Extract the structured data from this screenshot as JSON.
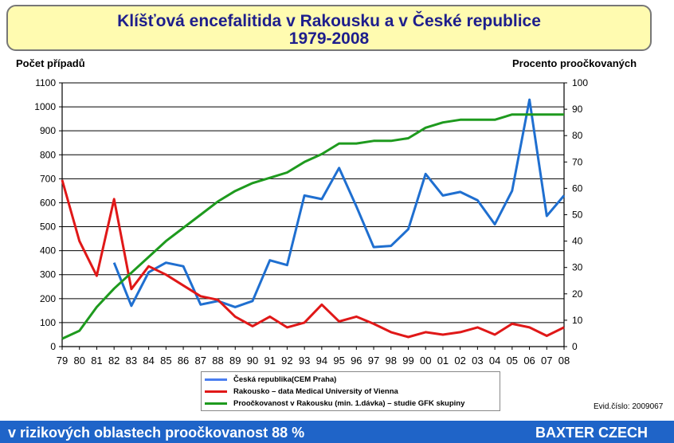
{
  "title_line1": "Klíšťová encefalitida v Rakousku a v České republice",
  "title_line2": "1979-2008",
  "footer_left": "v rizikových oblastech proočkovanost 88 %",
  "footer_right": "BAXTER CZECH",
  "evid": "Evid.číslo: 2009067",
  "chart_data": {
    "type": "line",
    "categories": [
      "79",
      "80",
      "81",
      "82",
      "83",
      "84",
      "85",
      "86",
      "87",
      "88",
      "89",
      "90",
      "91",
      "92",
      "93",
      "94",
      "95",
      "96",
      "97",
      "98",
      "99",
      "00",
      "01",
      "02",
      "03",
      "04",
      "05",
      "06",
      "07",
      "08"
    ],
    "ylabel_left": "Počet případů",
    "ylabel_right": "Procento proočkovaných",
    "ylim_left": [
      0,
      1100
    ],
    "yticks_left": [
      0,
      100,
      200,
      300,
      400,
      500,
      600,
      700,
      800,
      900,
      1000,
      1100
    ],
    "ylim_right": [
      0,
      100
    ],
    "yticks_right": [
      0,
      10,
      20,
      30,
      40,
      50,
      60,
      70,
      80,
      90,
      100
    ],
    "grid": true,
    "legend_position": "bottom",
    "series": [
      {
        "name": "Česká republika(CEM Praha)",
        "axis": "left",
        "color": "#1f6fd0",
        "values": [
          null,
          null,
          null,
          350,
          170,
          310,
          350,
          335,
          175,
          190,
          165,
          190,
          360,
          340,
          630,
          615,
          745,
          585,
          415,
          420,
          490,
          720,
          630,
          645,
          610,
          510,
          650,
          1030,
          545,
          630
        ]
      },
      {
        "name": "Rakousko – data Medical University of Vienna",
        "axis": "left",
        "color": "#e01818",
        "values": [
          695,
          440,
          295,
          615,
          240,
          335,
          300,
          255,
          210,
          195,
          125,
          85,
          125,
          80,
          100,
          175,
          105,
          125,
          95,
          60,
          40,
          60,
          50,
          60,
          80,
          50,
          95,
          80,
          45,
          80
        ]
      },
      {
        "name": "Proočkovanost v Rakousku (min. 1.dávka) – studie GFK skupiny",
        "axis": "right",
        "color": "#1e9a1e",
        "values": [
          3,
          6,
          15,
          22,
          28,
          34,
          40,
          45,
          50,
          55,
          59,
          62,
          64,
          66,
          70,
          73,
          77,
          77,
          78,
          78,
          79,
          83,
          85,
          86,
          86,
          86,
          88,
          88,
          88,
          88
        ]
      }
    ]
  }
}
